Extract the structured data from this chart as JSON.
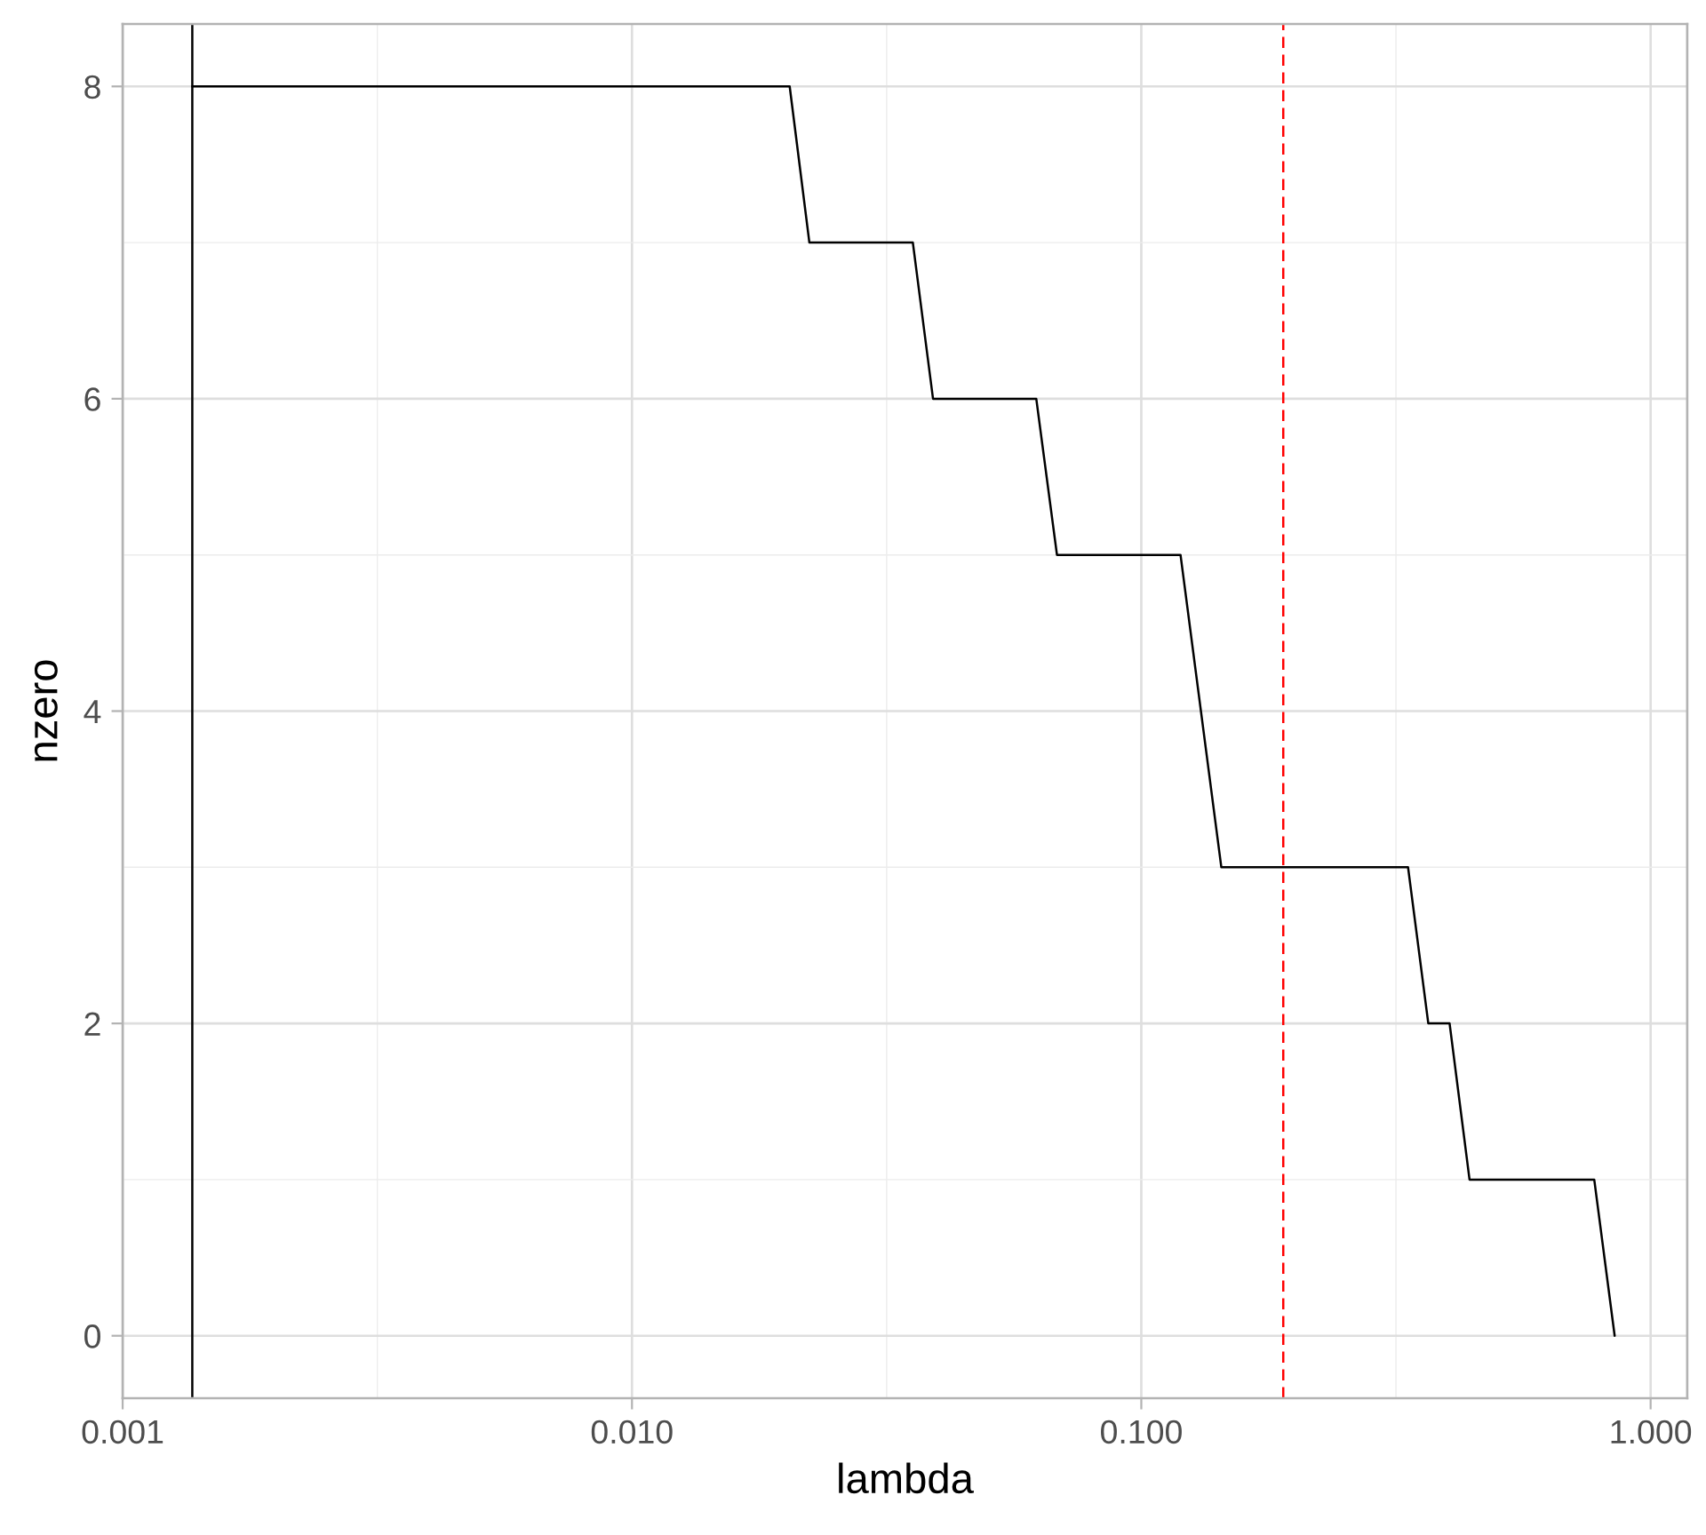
{
  "chart_data": {
    "type": "line",
    "xlabel": "lambda",
    "ylabel": "nzero",
    "log": "x",
    "grid": true,
    "xlim": [
      0.001,
      1.18
    ],
    "xticks": [
      0.001,
      {
        "value": 0.01,
        "label": "0.010"
      },
      {
        "value": 0.1,
        "label": "0.100"
      },
      {
        "value": 1,
        "label": "1.000"
      }
    ],
    "ylim": [
      -0.4,
      8.4
    ],
    "yticks": [
      0,
      2,
      4,
      6,
      8
    ],
    "series": [
      {
        "color": "#000000",
        "x": [
          0.00137,
          0.0204,
          0.0223,
          0.0356,
          0.039,
          0.0622,
          0.0683,
          0.1194,
          0.1436,
          0.334,
          0.366,
          0.403,
          0.441,
          0.775,
          0.85
        ],
        "values": [
          8,
          8,
          7,
          7,
          6,
          6,
          5,
          5,
          3,
          3,
          2,
          2,
          1,
          1,
          0
        ]
      }
    ],
    "ref_lines": [
      {
        "axis": "x",
        "value": 0.00137,
        "color": "#000000",
        "line_style": "solid"
      },
      {
        "axis": "x",
        "value": 0.19,
        "color": "#ff0000",
        "line_style": "dashed"
      }
    ]
  }
}
